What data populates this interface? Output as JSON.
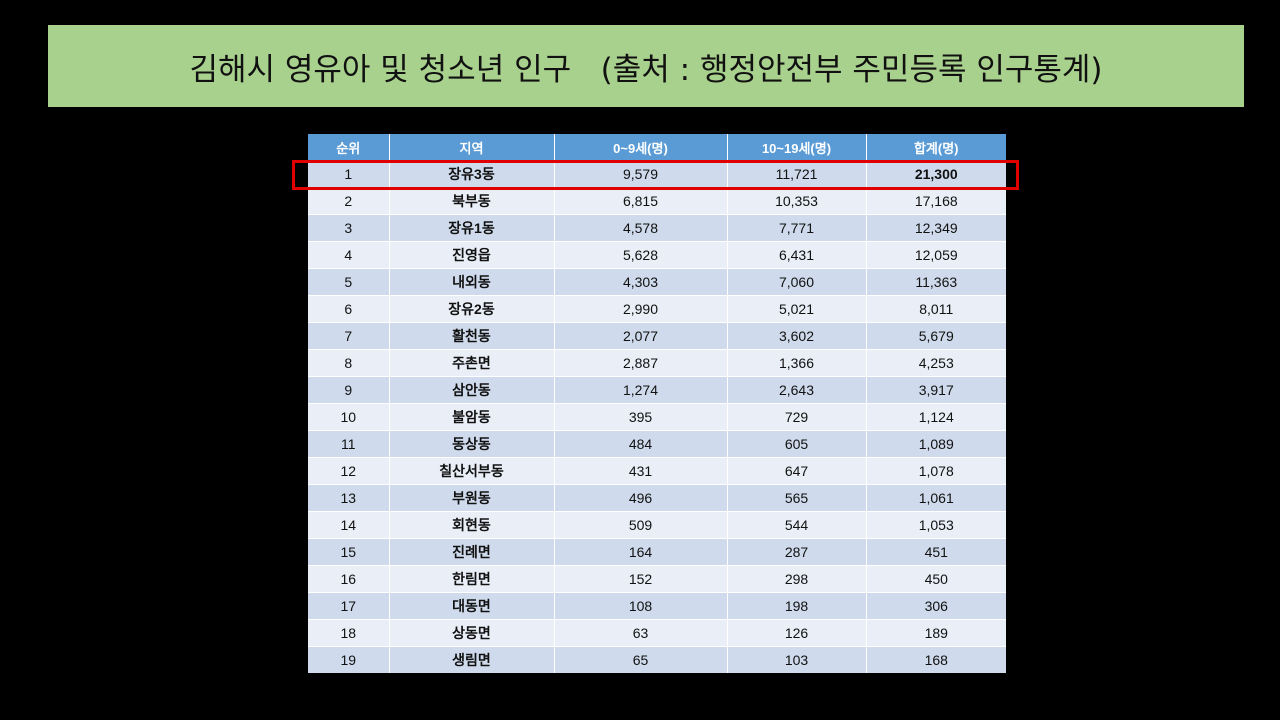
{
  "title": "김해시 영유아 및 청소년 인구   (출처 : 행정안전부 주민등록 인구통계)",
  "colors": {
    "banner_bg": "#a9d18e",
    "header_bg": "#5b9bd5",
    "row_odd": "#cfdbec",
    "row_even": "#e9eef7",
    "highlight": "#e00000"
  },
  "table": {
    "headers": [
      "순위",
      "지역",
      "0~9세(명)",
      "10~19세(명)",
      "합계(명)"
    ],
    "rows": [
      {
        "rank": "1",
        "region": "장유3동",
        "age0_9": "9,579",
        "age10_19": "11,721",
        "total": "21,300"
      },
      {
        "rank": "2",
        "region": "북부동",
        "age0_9": "6,815",
        "age10_19": "10,353",
        "total": "17,168"
      },
      {
        "rank": "3",
        "region": "장유1동",
        "age0_9": "4,578",
        "age10_19": "7,771",
        "total": "12,349"
      },
      {
        "rank": "4",
        "region": "진영읍",
        "age0_9": "5,628",
        "age10_19": "6,431",
        "total": "12,059"
      },
      {
        "rank": "5",
        "region": "내외동",
        "age0_9": "4,303",
        "age10_19": "7,060",
        "total": "11,363"
      },
      {
        "rank": "6",
        "region": "장유2동",
        "age0_9": "2,990",
        "age10_19": "5,021",
        "total": "8,011"
      },
      {
        "rank": "7",
        "region": "활천동",
        "age0_9": "2,077",
        "age10_19": "3,602",
        "total": "5,679"
      },
      {
        "rank": "8",
        "region": "주촌면",
        "age0_9": "2,887",
        "age10_19": "1,366",
        "total": "4,253"
      },
      {
        "rank": "9",
        "region": "삼안동",
        "age0_9": "1,274",
        "age10_19": "2,643",
        "total": "3,917"
      },
      {
        "rank": "10",
        "region": "불암동",
        "age0_9": "395",
        "age10_19": "729",
        "total": "1,124"
      },
      {
        "rank": "11",
        "region": "동상동",
        "age0_9": "484",
        "age10_19": "605",
        "total": "1,089"
      },
      {
        "rank": "12",
        "region": "칠산서부동",
        "age0_9": "431",
        "age10_19": "647",
        "total": "1,078"
      },
      {
        "rank": "13",
        "region": "부원동",
        "age0_9": "496",
        "age10_19": "565",
        "total": "1,061"
      },
      {
        "rank": "14",
        "region": "회현동",
        "age0_9": "509",
        "age10_19": "544",
        "total": "1,053"
      },
      {
        "rank": "15",
        "region": "진례면",
        "age0_9": "164",
        "age10_19": "287",
        "total": "451"
      },
      {
        "rank": "16",
        "region": "한림면",
        "age0_9": "152",
        "age10_19": "298",
        "total": "450"
      },
      {
        "rank": "17",
        "region": "대동면",
        "age0_9": "108",
        "age10_19": "198",
        "total": "306"
      },
      {
        "rank": "18",
        "region": "상동면",
        "age0_9": "63",
        "age10_19": "126",
        "total": "189"
      },
      {
        "rank": "19",
        "region": "생림면",
        "age0_9": "65",
        "age10_19": "103",
        "total": "168"
      }
    ],
    "highlighted_row_index": 0
  }
}
